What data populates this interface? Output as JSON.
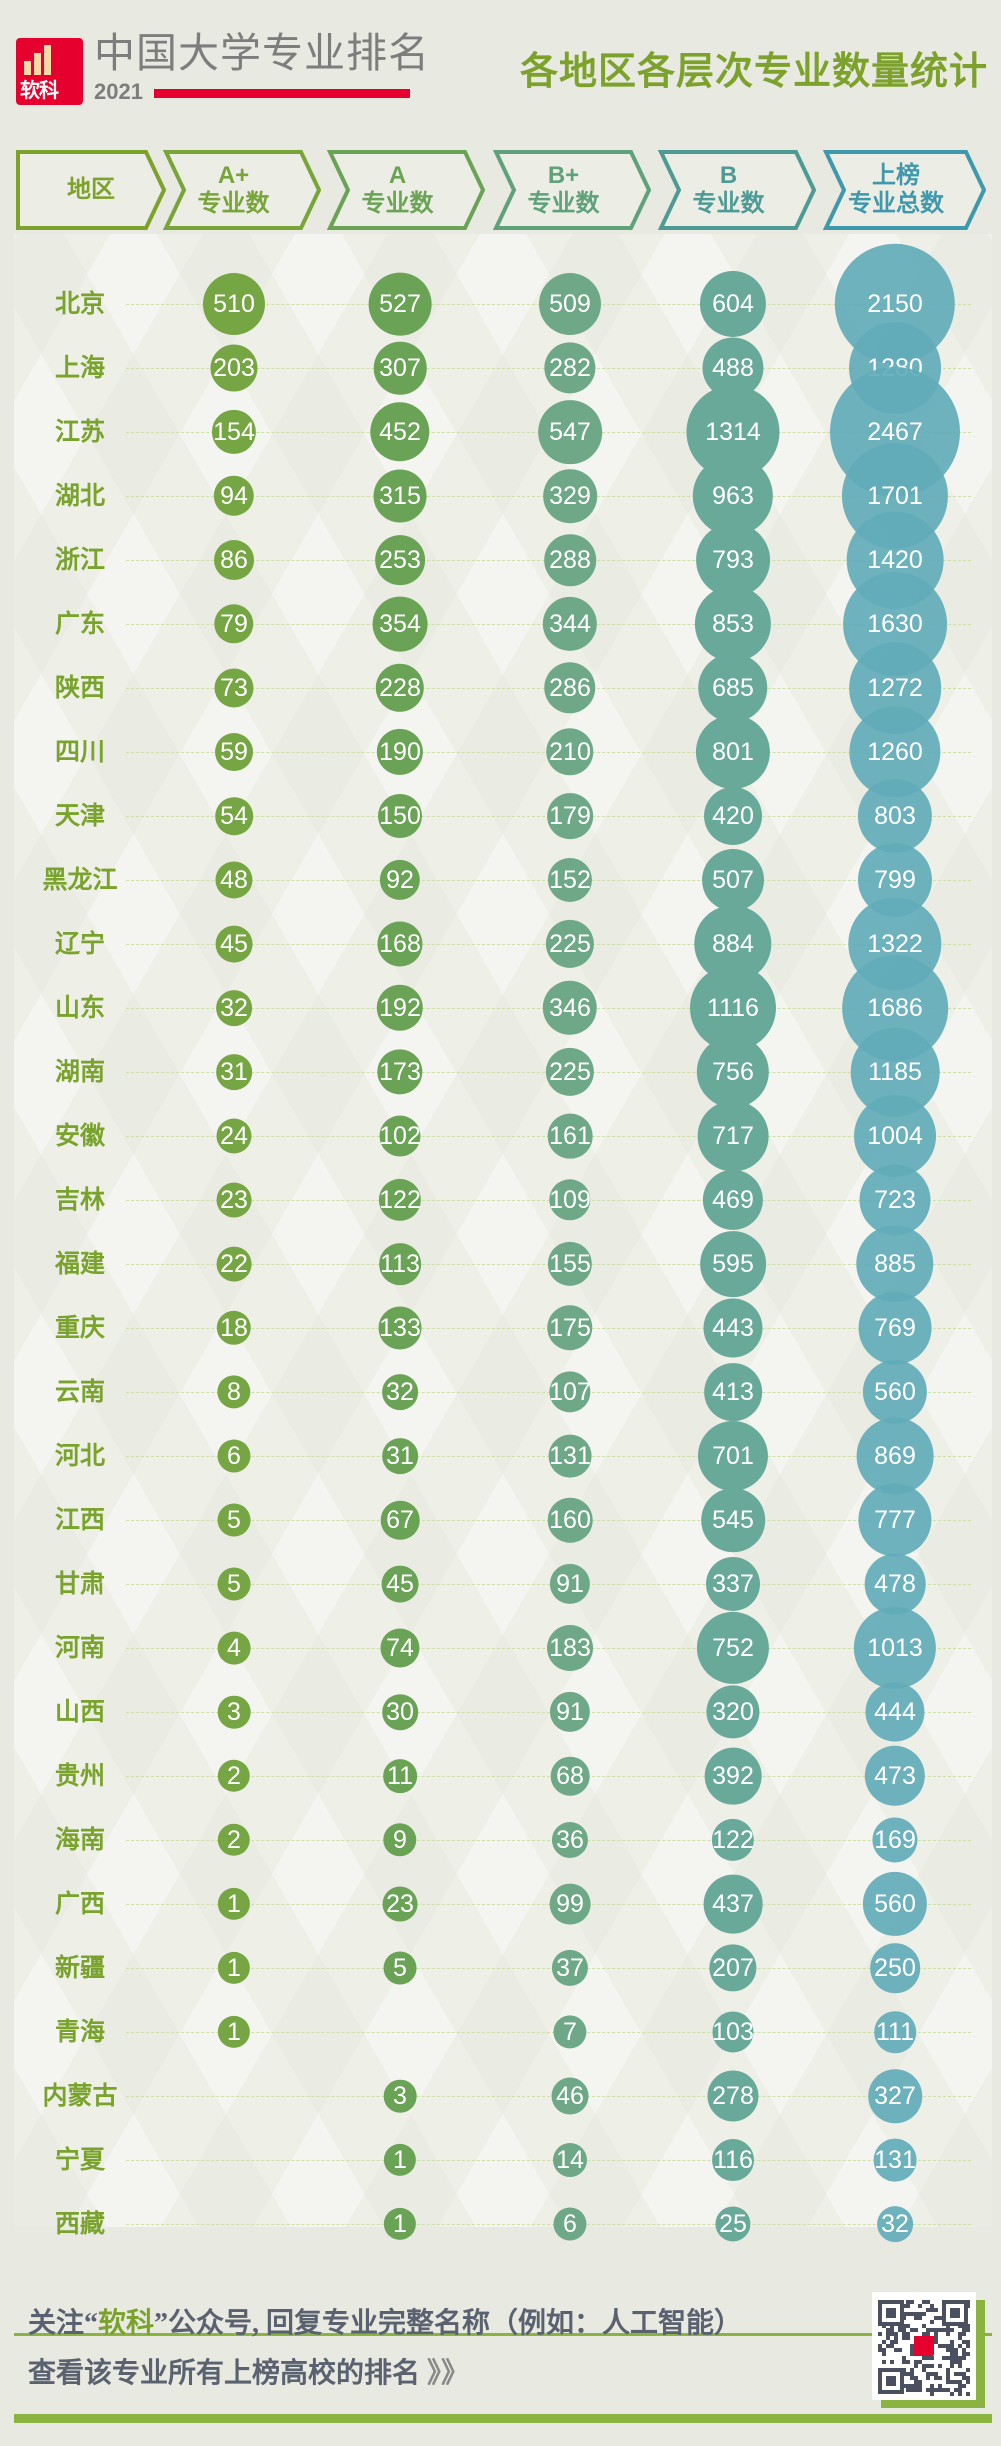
{
  "header": {
    "logo_text": "软科",
    "brand": "中国大学专业排名",
    "year": "2021",
    "title": "各地区各层次专业数量统计"
  },
  "columns": [
    {
      "line1": "地区",
      "line2": ""
    },
    {
      "line1": "A+",
      "line2": "专业数"
    },
    {
      "line1": "A",
      "line2": "专业数"
    },
    {
      "line1": "B+",
      "line2": "专业数"
    },
    {
      "line1": "B",
      "line2": "专业数"
    },
    {
      "line1": "上榜",
      "line2": "专业总数"
    }
  ],
  "colors": {
    "label": "#7aa32e",
    "aplus": "#76a643",
    "a": "#6aa356",
    "bplus": "#6ea887",
    "b": "#69a99a",
    "total": "#62abb9",
    "red": "#e5002d"
  },
  "chart_data": {
    "type": "table",
    "series": [
      {
        "name": "A+专业数"
      },
      {
        "name": "A专业数"
      },
      {
        "name": "B+专业数"
      },
      {
        "name": "B专业数"
      },
      {
        "name": "上榜专业总数"
      }
    ],
    "rows": [
      {
        "region": "北京",
        "values": [
          510,
          527,
          509,
          604,
          2150
        ]
      },
      {
        "region": "上海",
        "values": [
          203,
          307,
          282,
          488,
          1280
        ]
      },
      {
        "region": "江苏",
        "values": [
          154,
          452,
          547,
          1314,
          2467
        ]
      },
      {
        "region": "湖北",
        "values": [
          94,
          315,
          329,
          963,
          1701
        ]
      },
      {
        "region": "浙江",
        "values": [
          86,
          253,
          288,
          793,
          1420
        ]
      },
      {
        "region": "广东",
        "values": [
          79,
          354,
          344,
          853,
          1630
        ]
      },
      {
        "region": "陕西",
        "values": [
          73,
          228,
          286,
          685,
          1272
        ]
      },
      {
        "region": "四川",
        "values": [
          59,
          190,
          210,
          801,
          1260
        ]
      },
      {
        "region": "天津",
        "values": [
          54,
          150,
          179,
          420,
          803
        ]
      },
      {
        "region": "黑龙江",
        "values": [
          48,
          92,
          152,
          507,
          799
        ]
      },
      {
        "region": "辽宁",
        "values": [
          45,
          168,
          225,
          884,
          1322
        ]
      },
      {
        "region": "山东",
        "values": [
          32,
          192,
          346,
          1116,
          1686
        ]
      },
      {
        "region": "湖南",
        "values": [
          31,
          173,
          225,
          756,
          1185
        ]
      },
      {
        "region": "安徽",
        "values": [
          24,
          102,
          161,
          717,
          1004
        ]
      },
      {
        "region": "吉林",
        "values": [
          23,
          122,
          109,
          469,
          723
        ]
      },
      {
        "region": "福建",
        "values": [
          22,
          113,
          155,
          595,
          885
        ]
      },
      {
        "region": "重庆",
        "values": [
          18,
          133,
          175,
          443,
          769
        ]
      },
      {
        "region": "云南",
        "values": [
          8,
          32,
          107,
          413,
          560
        ]
      },
      {
        "region": "河北",
        "values": [
          6,
          31,
          131,
          701,
          869
        ]
      },
      {
        "region": "江西",
        "values": [
          5,
          67,
          160,
          545,
          777
        ]
      },
      {
        "region": "甘肃",
        "values": [
          5,
          45,
          91,
          337,
          478
        ]
      },
      {
        "region": "河南",
        "values": [
          4,
          74,
          183,
          752,
          1013
        ]
      },
      {
        "region": "山西",
        "values": [
          3,
          30,
          91,
          320,
          444
        ]
      },
      {
        "region": "贵州",
        "values": [
          2,
          11,
          68,
          392,
          473
        ]
      },
      {
        "region": "海南",
        "values": [
          2,
          9,
          36,
          122,
          169
        ]
      },
      {
        "region": "广西",
        "values": [
          1,
          23,
          99,
          437,
          560
        ]
      },
      {
        "region": "新疆",
        "values": [
          1,
          5,
          37,
          207,
          250
        ]
      },
      {
        "region": "青海",
        "values": [
          1,
          null,
          7,
          103,
          111
        ]
      },
      {
        "region": "内蒙古",
        "values": [
          null,
          3,
          46,
          278,
          327
        ]
      },
      {
        "region": "宁夏",
        "values": [
          null,
          1,
          14,
          116,
          131
        ]
      },
      {
        "region": "西藏",
        "values": [
          null,
          1,
          6,
          25,
          32
        ]
      }
    ]
  },
  "footer": {
    "line1_pre": "关注",
    "line1_quote_open": "“",
    "line1_highlight": "软科",
    "line1_quote_close": "”",
    "line1_post": "公众号, 回复专业完整名称（例如：人工智能）",
    "line2": "查看该专业所有上榜高校的排名",
    "arrows": "》》"
  }
}
